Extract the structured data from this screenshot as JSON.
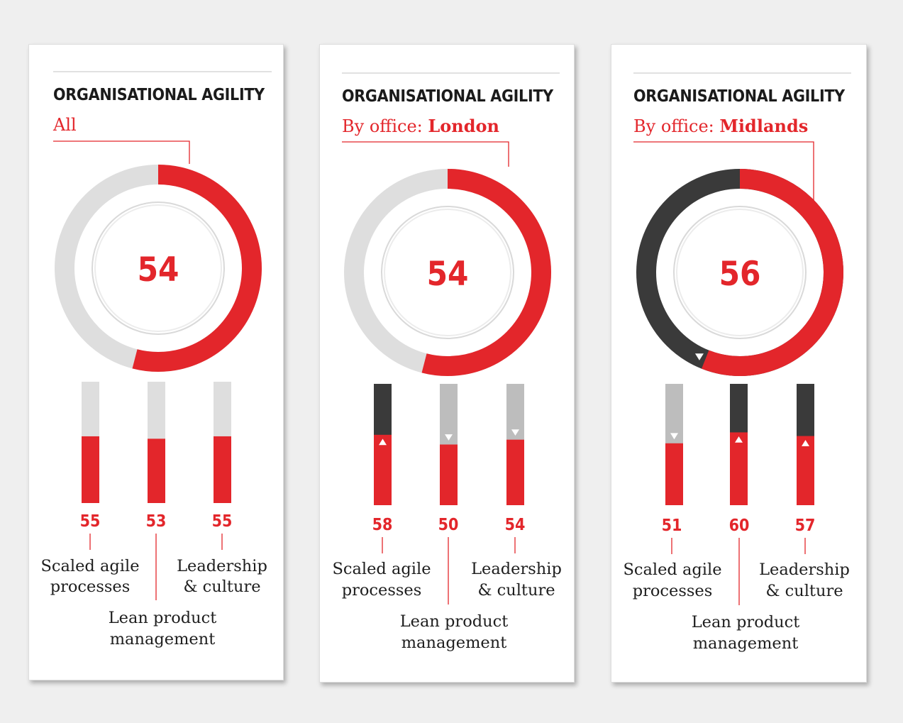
{
  "colors": {
    "red": "#e3262b",
    "light_gray": "#dedede",
    "mid_gray": "#bdbdbd",
    "dark": "#3a3a3a",
    "text": "#1e1e1e",
    "card": "#ffffff"
  },
  "chart_data": [
    {
      "type": "donut+bar",
      "title": "ORGANISATIONAL AGILITY",
      "subtitle_prefix": "All",
      "subtitle_name": "",
      "overall": 54,
      "ring_remainder_color": "light",
      "overall_marker": "none",
      "categories": [
        "Scaled agile processes",
        "Lean product management",
        "Leadership & culture"
      ],
      "values": [
        55,
        53,
        55
      ],
      "bar_remainder_colors": [
        "light",
        "light",
        "light"
      ],
      "markers": [
        "none",
        "none",
        "none"
      ],
      "labels": {
        "cat1_line1": "Scaled agile",
        "cat1_line2": "processes",
        "cat2_line1": "Lean product",
        "cat2_line2": "management",
        "cat3_line1": "Leadership",
        "cat3_line2": "& culture"
      }
    },
    {
      "type": "donut+bar",
      "title": "ORGANISATIONAL AGILITY",
      "subtitle_prefix": "By office: ",
      "subtitle_name": "London",
      "overall": 54,
      "ring_remainder_color": "light",
      "overall_marker": "none",
      "categories": [
        "Scaled agile processes",
        "Lean product management",
        "Leadership & culture"
      ],
      "values": [
        58,
        50,
        54
      ],
      "bar_remainder_colors": [
        "dark",
        "mid",
        "mid"
      ],
      "markers": [
        "up",
        "down",
        "down"
      ],
      "labels": {
        "cat1_line1": "Scaled agile",
        "cat1_line2": "processes",
        "cat2_line1": "Lean product",
        "cat2_line2": "management",
        "cat3_line1": "Leadership",
        "cat3_line2": "& culture"
      }
    },
    {
      "type": "donut+bar",
      "title": "ORGANISATIONAL AGILITY",
      "subtitle_prefix": "By office: ",
      "subtitle_name": "Midlands",
      "overall": 56,
      "ring_remainder_color": "dark",
      "overall_marker": "down",
      "categories": [
        "Scaled agile processes",
        "Lean product management",
        "Leadership & culture"
      ],
      "values": [
        51,
        60,
        57
      ],
      "bar_remainder_colors": [
        "mid",
        "dark",
        "dark"
      ],
      "markers": [
        "down",
        "up",
        "up"
      ],
      "labels": {
        "cat1_line1": "Scaled agile",
        "cat1_line2": "processes",
        "cat2_line1": "Lean product",
        "cat2_line2": "management",
        "cat3_line1": "Leadership",
        "cat3_line2": "& culture"
      }
    }
  ]
}
